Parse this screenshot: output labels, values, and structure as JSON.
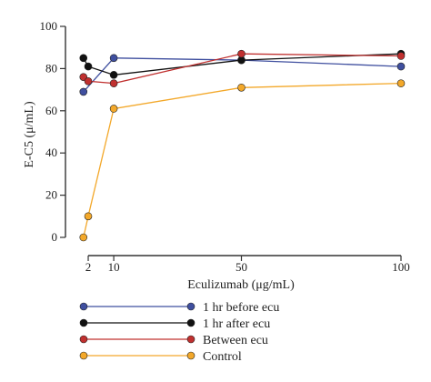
{
  "chart_data": {
    "type": "line",
    "xlabel": "Eculizumab (μg/mL)",
    "ylabel": "E-C5 (μ/mL)",
    "x_ticks": [
      2,
      10,
      50,
      100
    ],
    "y_ticks": [
      0,
      20,
      40,
      60,
      80,
      100
    ],
    "xlim": [
      0,
      100
    ],
    "ylim": [
      0,
      100
    ],
    "series": [
      {
        "name": "1 hr before ecu",
        "color": "#3f4f9f",
        "x": [
          0.5,
          10,
          50,
          100
        ],
        "y": [
          69,
          85,
          84,
          81
        ]
      },
      {
        "name": "1 hr after ecu",
        "color": "#111111",
        "x": [
          0.5,
          2,
          10,
          50,
          100
        ],
        "y": [
          85,
          81,
          77,
          84,
          87
        ]
      },
      {
        "name": "Between ecu",
        "color": "#c0302f",
        "x": [
          0.5,
          2,
          10,
          50,
          100
        ],
        "y": [
          76,
          74,
          73,
          87,
          86
        ]
      },
      {
        "name": "Control",
        "color": "#f3a82a",
        "x": [
          0.5,
          2,
          10,
          50,
          100
        ],
        "y": [
          0,
          10,
          61,
          71,
          73
        ]
      }
    ],
    "legend_position": "bottom"
  }
}
